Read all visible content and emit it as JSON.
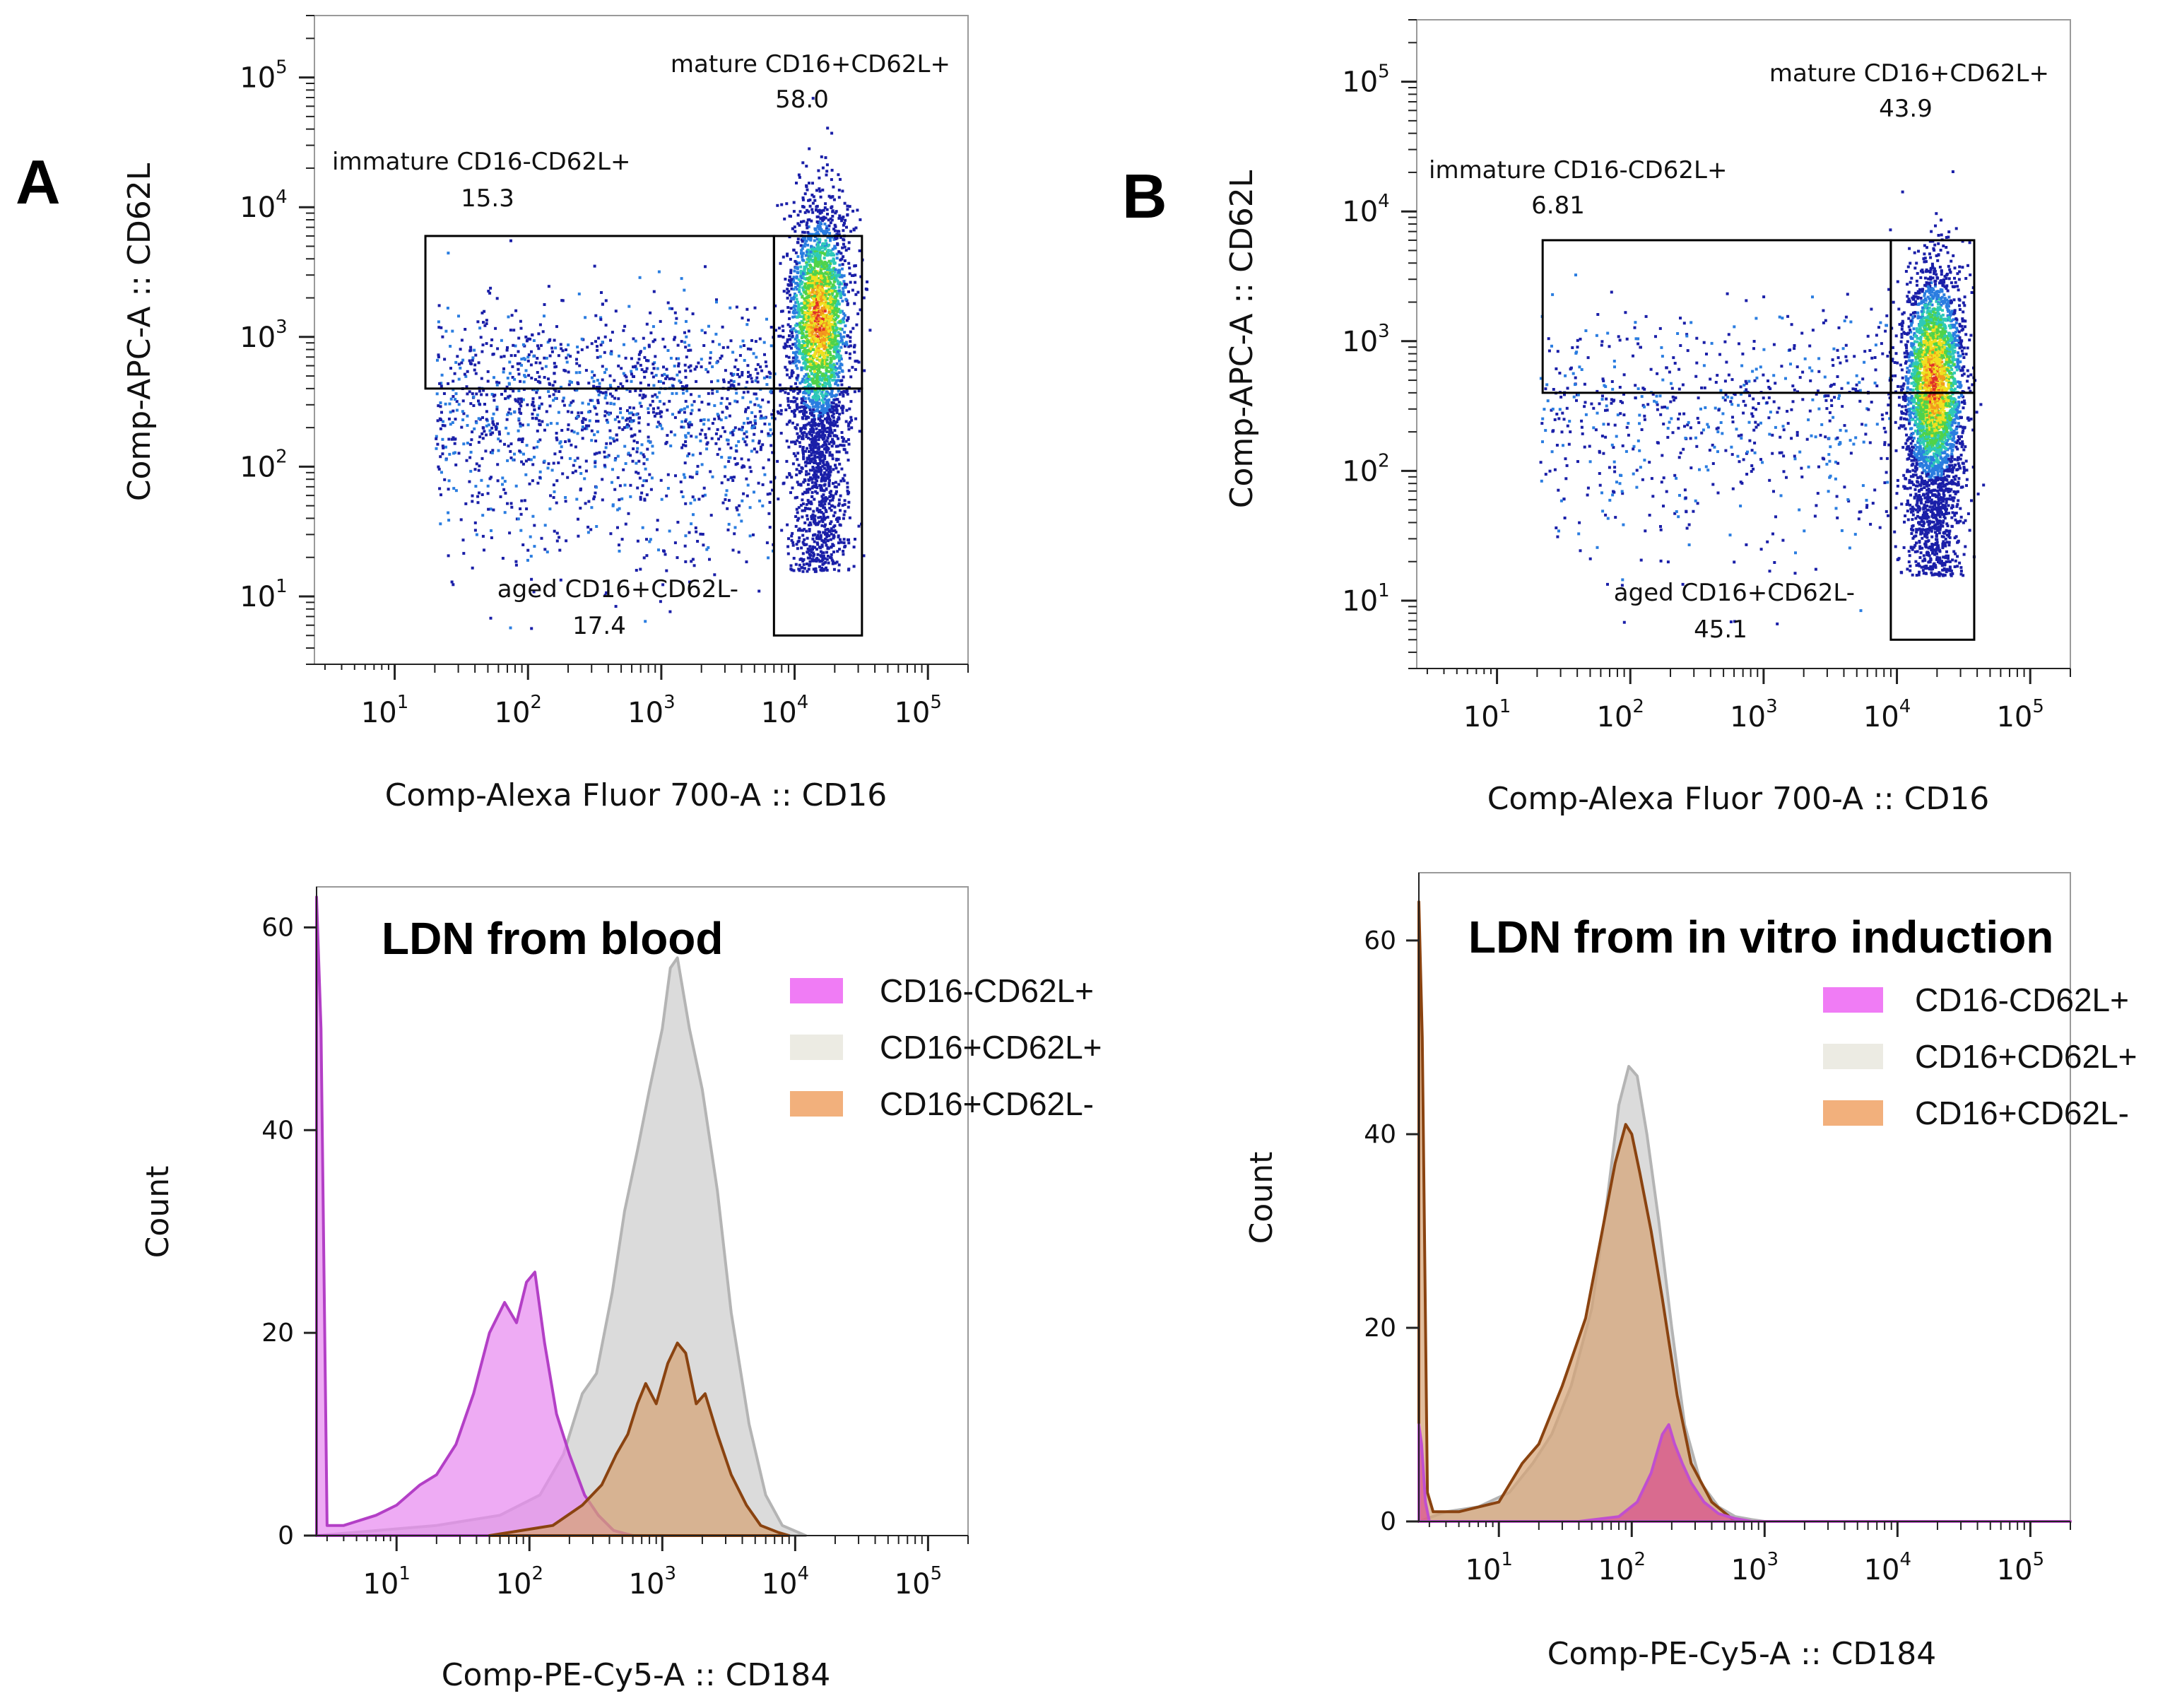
{
  "figure": {
    "panel_a_letter": "A",
    "panel_b_letter": "B"
  },
  "chart_data": [
    {
      "id": "scatterA",
      "type": "scatter",
      "title": "",
      "xlabel": "Comp-Alexa Fluor 700-A :: CD16",
      "ylabel": "Comp-APC-A :: CD62L",
      "xscale": "log",
      "yscale": "log",
      "xlim": [
        2.5,
        200000
      ],
      "ylim": [
        3,
        300000
      ],
      "x_ticks": [
        "10^1",
        "10^2",
        "10^3",
        "10^4",
        "10^5"
      ],
      "y_ticks": [
        "10^1",
        "10^2",
        "10^3",
        "10^4",
        "10^5"
      ],
      "gates": [
        {
          "name": "immature CD16-CD62L+",
          "value": "15.3",
          "x_range": [
            17,
            7000
          ],
          "y_range": [
            400,
            6000
          ]
        },
        {
          "name": "mature CD16+CD62L+",
          "value": "58.0",
          "x_range": [
            7000,
            32000
          ],
          "y_range": [
            400,
            6000
          ]
        },
        {
          "name": "aged CD16+CD62L-",
          "value": "17.4",
          "x_range": [
            7000,
            32000
          ],
          "y_range": [
            5,
            400
          ]
        }
      ]
    },
    {
      "id": "scatterB",
      "type": "scatter",
      "title": "",
      "xlabel": "Comp-Alexa Fluor 700-A :: CD16",
      "ylabel": "Comp-APC-A :: CD62L",
      "xscale": "log",
      "yscale": "log",
      "xlim": [
        2.5,
        200000
      ],
      "ylim": [
        3,
        300000
      ],
      "x_ticks": [
        "10^1",
        "10^2",
        "10^3",
        "10^4",
        "10^5"
      ],
      "y_ticks": [
        "10^1",
        "10^2",
        "10^3",
        "10^4",
        "10^5"
      ],
      "gates": [
        {
          "name": "immature CD16-CD62L+",
          "value": "6.81",
          "x_range": [
            22,
            9000
          ],
          "y_range": [
            400,
            6000
          ]
        },
        {
          "name": "mature CD16+CD62L+",
          "value": "43.9",
          "x_range": [
            9000,
            38000
          ],
          "y_range": [
            400,
            6000
          ]
        },
        {
          "name": "aged CD16+CD62L-",
          "value": "45.1",
          "x_range": [
            9000,
            38000
          ],
          "y_range": [
            5,
            400
          ]
        }
      ]
    },
    {
      "id": "histA",
      "type": "area",
      "title": "LDN from blood",
      "xlabel": "Comp-PE-Cy5-A :: CD184",
      "ylabel": "Count",
      "xscale": "log",
      "xlim": [
        2.5,
        200000
      ],
      "ylim": [
        0,
        64
      ],
      "x_ticks": [
        "10^1",
        "10^2",
        "10^3",
        "10^4",
        "10^5"
      ],
      "y_ticks": [
        0,
        20,
        40,
        60
      ],
      "series": [
        {
          "name": "CD16+CD62L+",
          "fill": "#d9d9d9",
          "stroke": "#b4b4b4",
          "x": [
            2.5,
            20,
            60,
            120,
            180,
            250,
            320,
            420,
            520,
            650,
            800,
            1000,
            1150,
            1300,
            1600,
            2000,
            2600,
            3300,
            4500,
            6000,
            8000,
            12000
          ],
          "y": [
            0,
            1,
            2,
            4,
            8,
            14,
            16,
            24,
            32,
            38,
            44,
            50,
            56,
            57,
            50,
            44,
            34,
            22,
            11,
            4,
            1,
            0
          ]
        },
        {
          "name": "CD16-CD62L+",
          "fill": "#e78bf0",
          "stroke": "#b33fc6",
          "x": [
            2.5,
            2.7,
            3.0,
            4,
            7,
            10,
            15,
            20,
            28,
            38,
            50,
            65,
            80,
            95,
            110,
            130,
            160,
            200,
            260,
            330,
            430,
            600
          ],
          "y": [
            63,
            50,
            1,
            1,
            2,
            3,
            5,
            6,
            9,
            14,
            20,
            23,
            21,
            25,
            26,
            19,
            12,
            8,
            4,
            2,
            0.5,
            0
          ]
        },
        {
          "name": "CD16+CD62L-",
          "fill": "#d5a376",
          "stroke": "#8a4310",
          "x": [
            50,
            150,
            250,
            350,
            450,
            550,
            650,
            750,
            900,
            1100,
            1300,
            1500,
            1800,
            2100,
            2600,
            3300,
            4300,
            5500,
            7500,
            9000
          ],
          "y": [
            0,
            1,
            3,
            5,
            8,
            10,
            13,
            15,
            13,
            17,
            19,
            18,
            13,
            14,
            10,
            6,
            3,
            1,
            0.3,
            0
          ]
        }
      ]
    },
    {
      "id": "histB",
      "type": "area",
      "title": "LDN from in vitro induction",
      "xlabel": "Comp-PE-Cy5-A :: CD184",
      "ylabel": "Count",
      "xscale": "log",
      "xlim": [
        2.5,
        200000
      ],
      "ylim": [
        0,
        67
      ],
      "x_ticks": [
        "10^1",
        "10^2",
        "10^3",
        "10^4",
        "10^5"
      ],
      "y_ticks": [
        0,
        20,
        40,
        60
      ],
      "series": [
        {
          "name": "CD16+CD62L+",
          "fill": "#d9d9d9",
          "stroke": "#b4b4b4",
          "x": [
            2.5,
            4,
            7,
            12,
            18,
            25,
            35,
            50,
            65,
            80,
            95,
            110,
            130,
            160,
            200,
            250,
            330,
            450,
            600,
            800,
            1000,
            200000
          ],
          "y": [
            0,
            1,
            1.5,
            3,
            6,
            9,
            14,
            22,
            33,
            43,
            47,
            46,
            40,
            31,
            20,
            10,
            4,
            1.5,
            0.5,
            0.2,
            0,
            0
          ]
        },
        {
          "name": "CD16+CD62L-",
          "fill": "#d5a376",
          "stroke": "#8a4310",
          "x": [
            2.5,
            2.65,
            2.9,
            3.2,
            5,
            10,
            15,
            20,
            30,
            45,
            60,
            75,
            90,
            100,
            115,
            140,
            170,
            220,
            280,
            400,
            600,
            200000
          ],
          "y": [
            64,
            50,
            3,
            1,
            1,
            2,
            6,
            8,
            14,
            21,
            30,
            37,
            41,
            40,
            36,
            30,
            23,
            13,
            6,
            2,
            0,
            0
          ]
        },
        {
          "name": "CD16-CD62L+",
          "fill": "#d94f8e",
          "stroke": "#c04fcf",
          "x": [
            2.5,
            2.62,
            2.8,
            3.0,
            40,
            80,
            110,
            140,
            170,
            190,
            210,
            240,
            280,
            350,
            450,
            600,
            800,
            2000,
            200000
          ],
          "y": [
            10,
            8,
            2,
            0,
            0,
            0.5,
            2,
            5,
            9,
            10,
            8,
            6,
            4,
            2,
            0.8,
            0.3,
            0,
            0,
            0
          ]
        }
      ],
      "legend_order": [
        "CD16-CD62L+",
        "CD16+CD62L+",
        "CD16+CD62L-"
      ]
    }
  ]
}
